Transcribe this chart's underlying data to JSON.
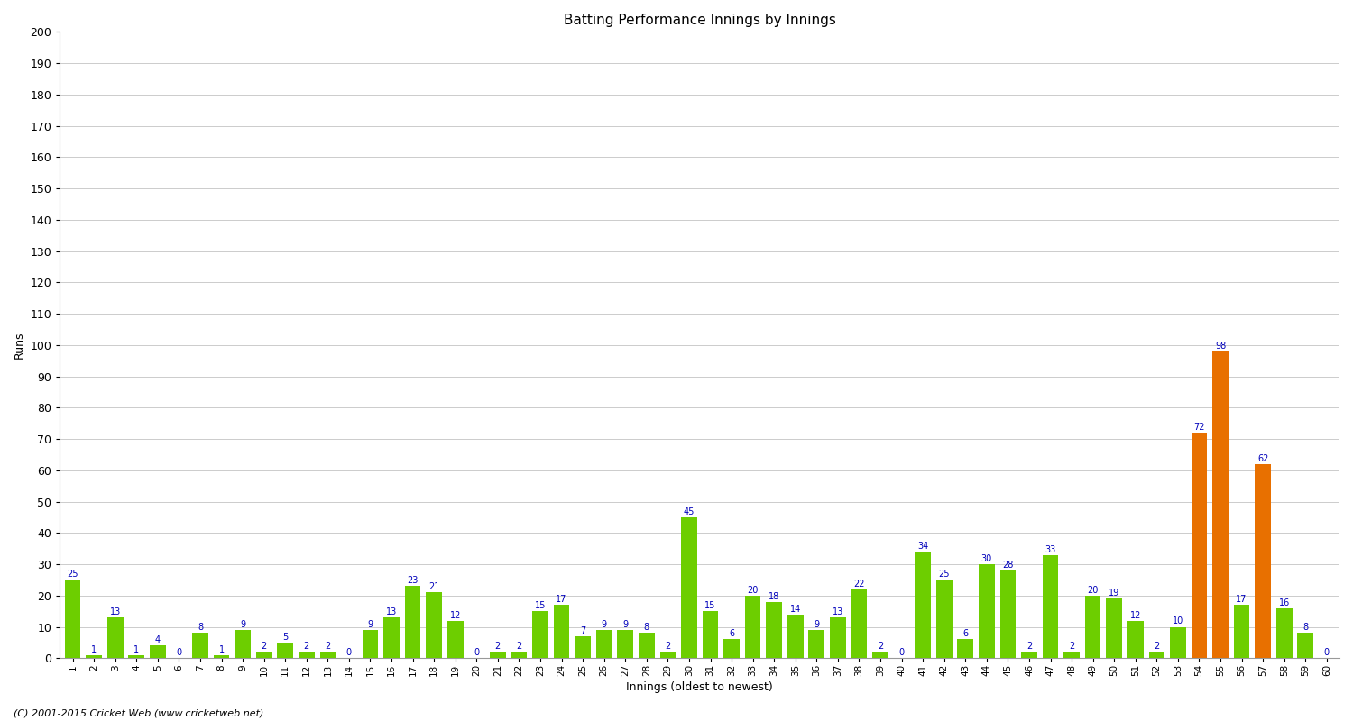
{
  "innings": [
    1,
    2,
    3,
    4,
    5,
    6,
    7,
    8,
    9,
    10,
    11,
    12,
    13,
    14,
    15,
    16,
    17,
    18,
    19,
    20,
    21,
    22,
    23,
    24,
    25,
    26,
    27,
    28,
    29,
    30,
    31,
    32,
    33,
    34,
    35,
    36,
    37,
    38,
    39,
    40,
    41,
    42,
    43,
    44,
    45,
    46,
    47,
    48,
    49,
    50,
    51,
    52,
    53,
    54,
    55,
    56,
    57,
    58,
    59,
    60
  ],
  "runs": [
    25,
    1,
    13,
    1,
    4,
    0,
    8,
    1,
    9,
    2,
    5,
    2,
    2,
    0,
    9,
    13,
    23,
    21,
    12,
    0,
    2,
    2,
    15,
    17,
    7,
    9,
    9,
    8,
    2,
    45,
    15,
    6,
    20,
    18,
    14,
    9,
    13,
    22,
    2,
    0,
    34,
    25,
    6,
    30,
    28,
    2,
    33,
    2,
    20,
    19,
    12,
    2,
    10,
    72,
    98,
    17,
    62,
    16,
    8,
    0
  ],
  "orange_innings": [
    54,
    55,
    57
  ],
  "bar_color_green": "#6dce00",
  "bar_color_orange": "#e87000",
  "label_color": "#0000bb",
  "ylabel": "Runs",
  "xlabel": "Innings (oldest to newest)",
  "title": "Batting Performance Innings by Innings",
  "footer": "(C) 2001-2015 Cricket Web (www.cricketweb.net)",
  "ylim": [
    0,
    200
  ],
  "yticks": [
    0,
    10,
    20,
    30,
    40,
    50,
    60,
    70,
    80,
    90,
    100,
    110,
    120,
    130,
    140,
    150,
    160,
    170,
    180,
    190,
    200
  ],
  "bg_color": "#ffffff",
  "grid_color": "#cccccc",
  "bar_width": 0.75,
  "label_fontsize": 7.0,
  "xtick_fontsize": 7.5,
  "ytick_fontsize": 9,
  "ylabel_fontsize": 9,
  "xlabel_fontsize": 9,
  "title_fontsize": 11,
  "footer_fontsize": 8
}
